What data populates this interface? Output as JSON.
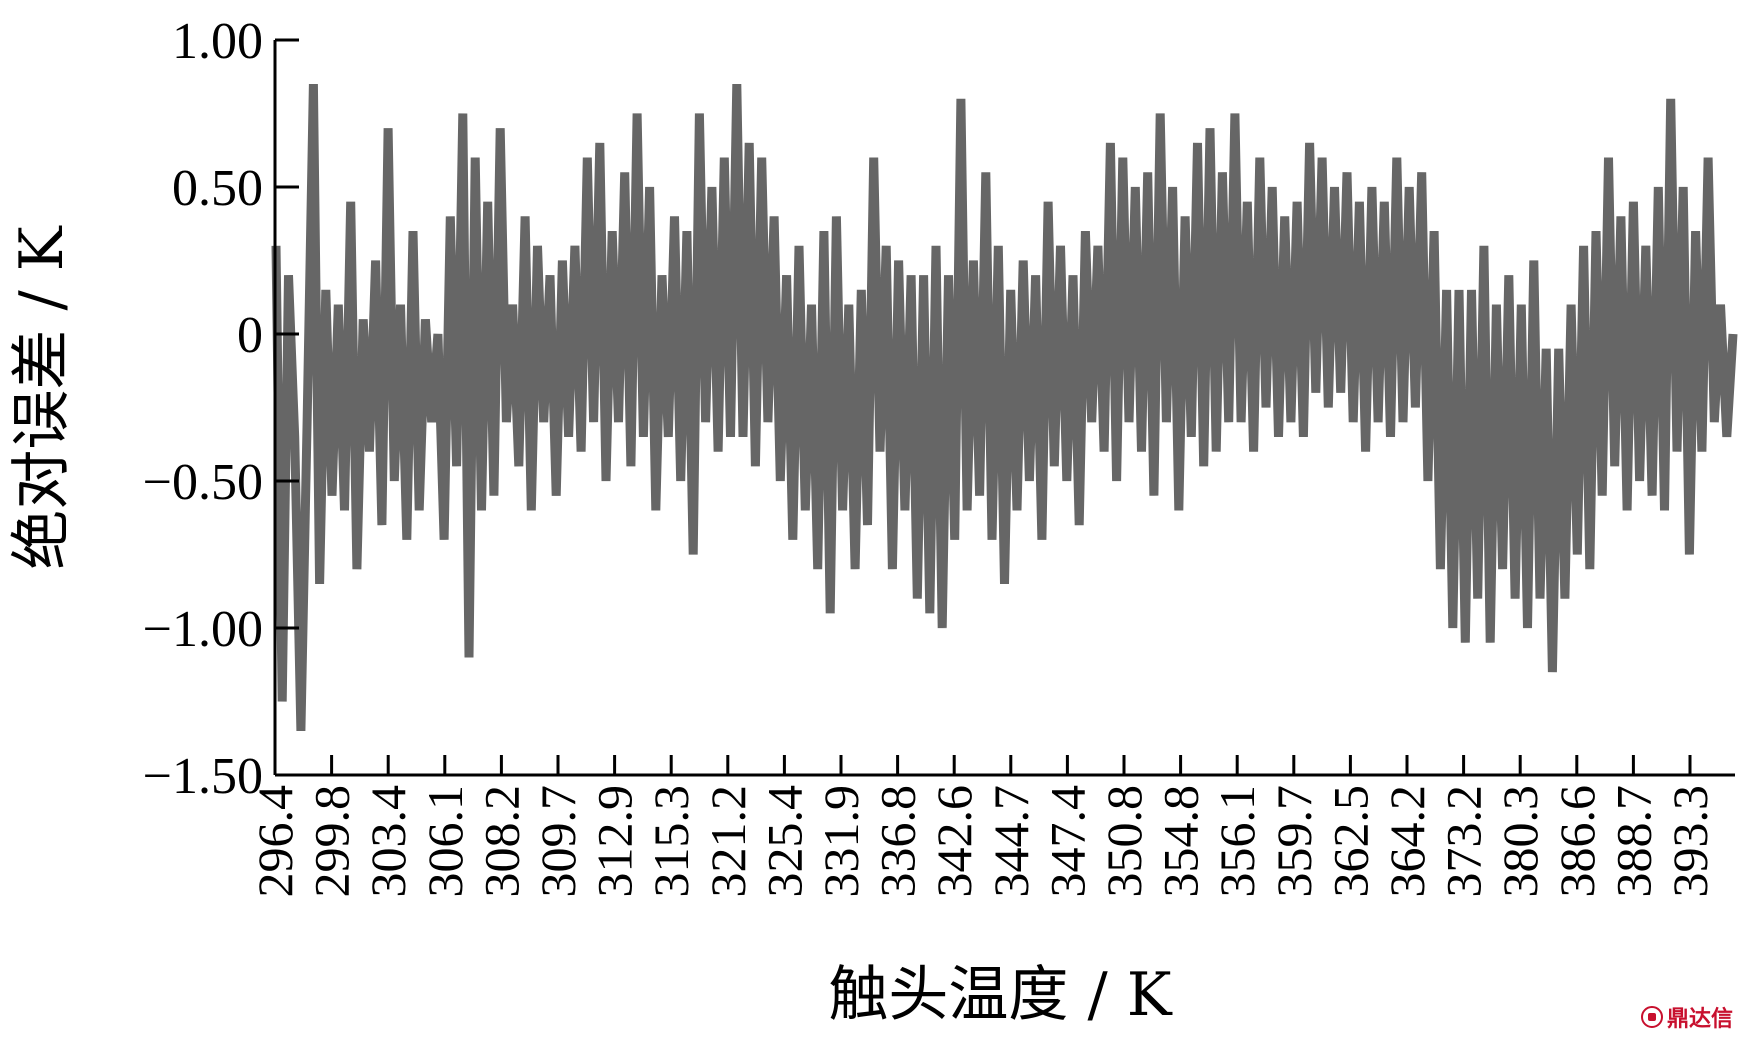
{
  "chart_data": {
    "type": "line",
    "title": "",
    "xlabel": "触头温度 / K",
    "ylabel": "绝对误差 / K",
    "ylim": [
      -1.5,
      1.0
    ],
    "y_ticks": [
      "1.00",
      "0.50",
      "0",
      "−0.50",
      "−1.00",
      "−1.50"
    ],
    "y_tick_values": [
      1.0,
      0.5,
      0,
      -0.5,
      -1.0,
      -1.5
    ],
    "x_ticks": [
      "296.4",
      "299.8",
      "303.4",
      "306.1",
      "308.2",
      "309.7",
      "312.9",
      "315.3",
      "321.2",
      "325.4",
      "331.9",
      "336.8",
      "342.6",
      "344.7",
      "347.4",
      "350.8",
      "354.8",
      "356.1",
      "359.7",
      "362.5",
      "364.2",
      "373.2",
      "380.3",
      "386.6",
      "388.7",
      "393.3"
    ],
    "series_color": "#666666",
    "grid": false,
    "legend": "none",
    "series": [
      {
        "values": [
          0.3,
          -1.25,
          0.2,
          -0.35,
          -1.35,
          -0.3,
          0.85,
          -0.85,
          0.15,
          -0.55,
          0.1,
          -0.6,
          0.45,
          -0.8,
          0.05,
          -0.4,
          0.25,
          -0.65,
          0.7,
          -0.5,
          0.1,
          -0.7,
          0.35,
          -0.6,
          0.05,
          -0.3,
          0.0,
          -0.7,
          0.4,
          -0.45,
          0.75,
          -1.1,
          0.6,
          -0.6,
          0.45,
          -0.55,
          0.7,
          -0.3,
          0.1,
          -0.45,
          0.4,
          -0.6,
          0.3,
          -0.3,
          0.2,
          -0.55,
          0.25,
          -0.35,
          0.3,
          -0.4,
          0.6,
          -0.3,
          0.65,
          -0.5,
          0.35,
          -0.3,
          0.55,
          -0.45,
          0.75,
          -0.35,
          0.5,
          -0.6,
          0.2,
          -0.35,
          0.4,
          -0.5,
          0.35,
          -0.75,
          0.75,
          -0.3,
          0.5,
          -0.4,
          0.6,
          -0.35,
          0.85,
          -0.35,
          0.65,
          -0.45,
          0.6,
          -0.3,
          0.4,
          -0.5,
          0.2,
          -0.7,
          0.3,
          -0.6,
          0.1,
          -0.8,
          0.35,
          -0.95,
          0.4,
          -0.6,
          0.1,
          -0.8,
          0.15,
          -0.65,
          0.6,
          -0.4,
          0.3,
          -0.8,
          0.25,
          -0.6,
          0.2,
          -0.9,
          0.2,
          -0.95,
          0.3,
          -1.0,
          0.2,
          -0.7,
          0.8,
          -0.6,
          0.25,
          -0.55,
          0.55,
          -0.7,
          0.3,
          -0.85,
          0.15,
          -0.6,
          0.25,
          -0.5,
          0.2,
          -0.7,
          0.45,
          -0.45,
          0.3,
          -0.5,
          0.2,
          -0.65,
          0.35,
          -0.3,
          0.3,
          -0.4,
          0.65,
          -0.5,
          0.6,
          -0.3,
          0.5,
          -0.4,
          0.55,
          -0.55,
          0.75,
          -0.3,
          0.5,
          -0.6,
          0.4,
          -0.35,
          0.65,
          -0.45,
          0.7,
          -0.4,
          0.55,
          -0.3,
          0.75,
          -0.3,
          0.45,
          -0.4,
          0.6,
          -0.25,
          0.5,
          -0.35,
          0.4,
          -0.3,
          0.45,
          -0.35,
          0.65,
          -0.2,
          0.6,
          -0.25,
          0.5,
          -0.2,
          0.55,
          -0.3,
          0.45,
          -0.4,
          0.5,
          -0.3,
          0.45,
          -0.35,
          0.6,
          -0.3,
          0.5,
          -0.25,
          0.55,
          -0.5,
          0.35,
          -0.8,
          0.15,
          -1.0,
          0.15,
          -1.05,
          0.15,
          -0.9,
          0.3,
          -1.05,
          0.1,
          -0.8,
          0.2,
          -0.9,
          0.1,
          -1.0,
          0.25,
          -0.9,
          -0.05,
          -1.15,
          -0.05,
          -0.9,
          0.1,
          -0.75,
          0.3,
          -0.8,
          0.35,
          -0.55,
          0.6,
          -0.45,
          0.4,
          -0.6,
          0.45,
          -0.5,
          0.3,
          -0.55,
          0.5,
          -0.6,
          0.8,
          -0.4,
          0.5,
          -0.75,
          0.35,
          -0.4,
          0.6,
          -0.3,
          0.1,
          -0.35,
          0.0
        ]
      }
    ]
  },
  "watermark": {
    "text": "鼎达信"
  }
}
